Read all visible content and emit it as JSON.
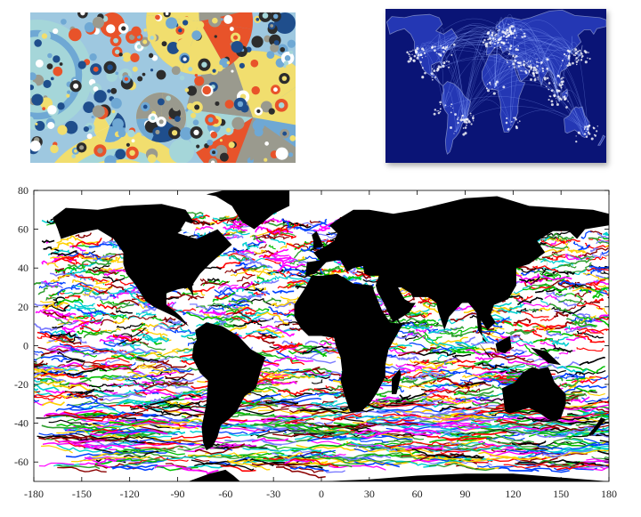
{
  "colors": {
    "circles_background": "#9ec8e0",
    "network_background": "#0a1476",
    "network_glow": "#c9d8ff",
    "land": "#000000",
    "ice": "#ffffff"
  },
  "circles_palette": [
    "#e8532a",
    "#f1de6e",
    "#1f4e8c",
    "#6fa8d4",
    "#a5d6d9",
    "#9a9a8e",
    "#ffffff",
    "#2c2c2c"
  ],
  "drifter_palette": [
    "#ff0000",
    "#00c000",
    "#0040ff",
    "#ffd000",
    "#ff00ff",
    "#00d0d0",
    "#000000",
    "#8b0000",
    "#7a7aff",
    "#30a030"
  ],
  "chart_data": {
    "type": "map",
    "x_ticks": [
      -180,
      -150,
      -120,
      -90,
      -60,
      -30,
      0,
      30,
      60,
      90,
      120,
      150,
      180
    ],
    "y_ticks": [
      80,
      60,
      40,
      20,
      0,
      -20,
      -40,
      -60
    ],
    "xlim": [
      -180,
      180
    ],
    "ylim": [
      -70,
      80
    ]
  }
}
